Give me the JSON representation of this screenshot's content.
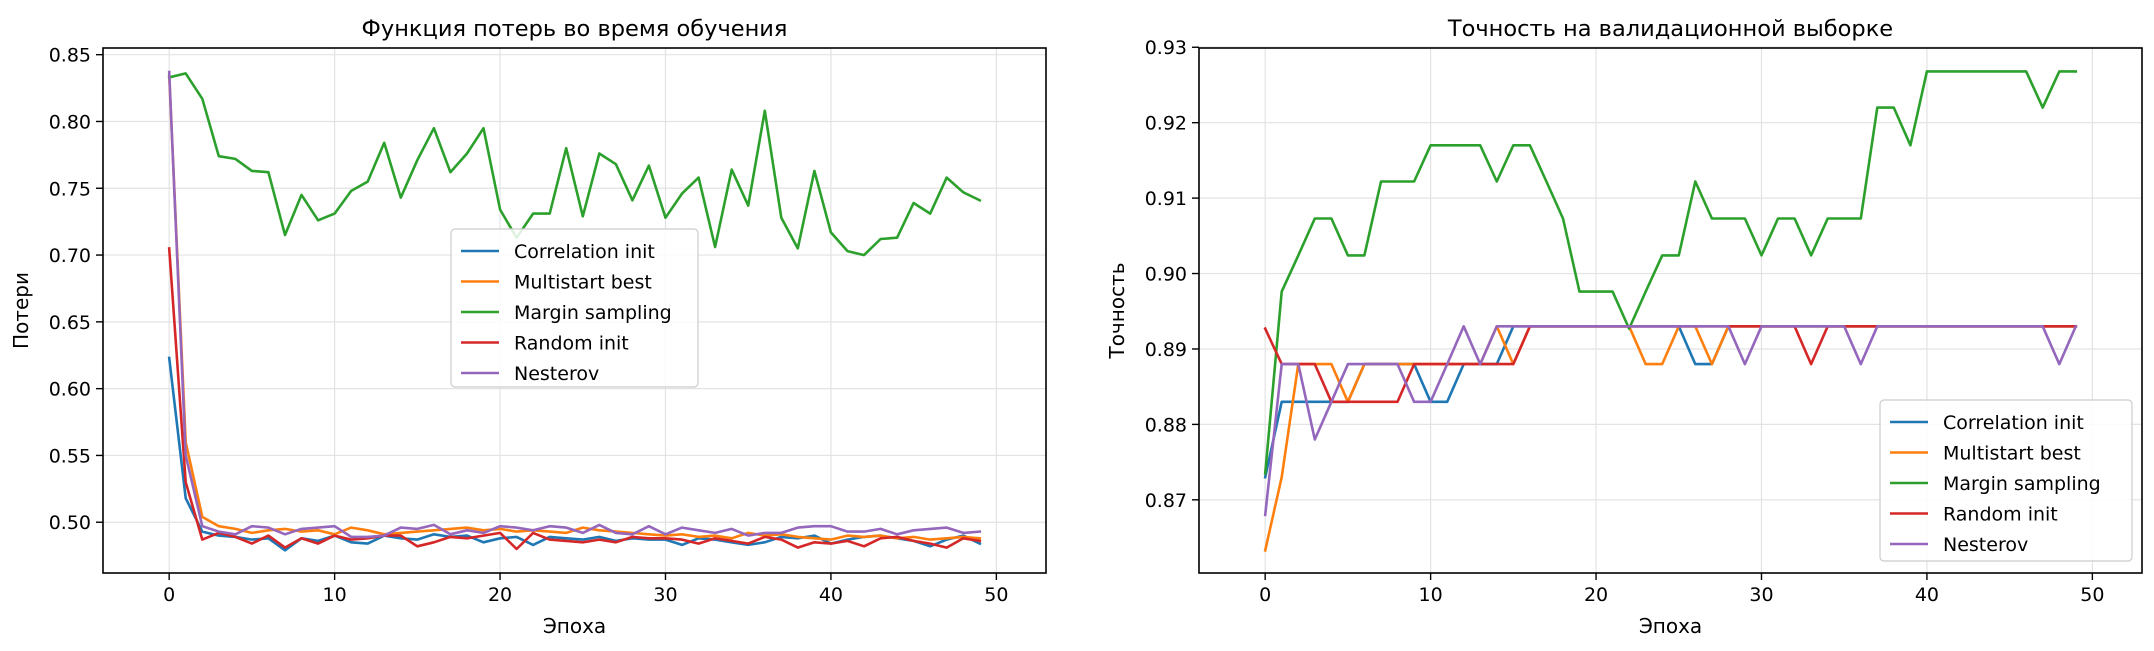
{
  "chart_data": [
    {
      "type": "line",
      "title": "Функция потерь во время обучения",
      "xlabel": "Эпоха",
      "ylabel": "Потери",
      "xlim": [
        -4,
        53
      ],
      "ylim": [
        0.462,
        0.855
      ],
      "xticks": [
        0,
        10,
        20,
        30,
        40,
        50
      ],
      "yticks": [
        0.5,
        0.55,
        0.6,
        0.65,
        0.7,
        0.75,
        0.8,
        0.85
      ],
      "ytick_labels": [
        "0.50",
        "0.55",
        "0.60",
        "0.65",
        "0.70",
        "0.75",
        "0.80",
        "0.85"
      ],
      "grid": true,
      "legend_position": "center-right",
      "x": [
        0,
        1,
        2,
        3,
        4,
        5,
        6,
        7,
        8,
        9,
        10,
        11,
        12,
        13,
        14,
        15,
        16,
        17,
        18,
        19,
        20,
        21,
        22,
        23,
        24,
        25,
        26,
        27,
        28,
        29,
        30,
        31,
        32,
        33,
        34,
        35,
        36,
        37,
        38,
        39,
        40,
        41,
        42,
        43,
        44,
        45,
        46,
        47,
        48,
        49
      ],
      "series": [
        {
          "name": "Correlation init",
          "color": "#1f77b4",
          "values": [
            0.623,
            0.518,
            0.493,
            0.49,
            0.489,
            0.487,
            0.488,
            0.479,
            0.488,
            0.486,
            0.49,
            0.485,
            0.484,
            0.49,
            0.488,
            0.487,
            0.491,
            0.489,
            0.49,
            0.485,
            0.488,
            0.489,
            0.483,
            0.489,
            0.488,
            0.487,
            0.489,
            0.486,
            0.488,
            0.487,
            0.487,
            0.483,
            0.488,
            0.487,
            0.485,
            0.483,
            0.485,
            0.489,
            0.488,
            0.49,
            0.484,
            0.487,
            0.489,
            0.49,
            0.488,
            0.486,
            0.482,
            0.487,
            0.49,
            0.484
          ]
        },
        {
          "name": "Multistart best",
          "color": "#ff7f0e",
          "values": [
            0.835,
            0.56,
            0.504,
            0.497,
            0.495,
            0.492,
            0.494,
            0.495,
            0.493,
            0.494,
            0.491,
            0.496,
            0.494,
            0.491,
            0.492,
            0.493,
            0.494,
            0.495,
            0.496,
            0.494,
            0.495,
            0.493,
            0.494,
            0.493,
            0.492,
            0.496,
            0.494,
            0.493,
            0.492,
            0.491,
            0.49,
            0.491,
            0.489,
            0.49,
            0.488,
            0.492,
            0.49,
            0.491,
            0.489,
            0.488,
            0.487,
            0.49,
            0.489,
            0.49,
            0.488,
            0.489,
            0.487,
            0.488,
            0.489,
            0.488
          ]
        },
        {
          "name": "Margin sampling",
          "color": "#2ca02c",
          "values": [
            0.833,
            0.836,
            0.817,
            0.774,
            0.772,
            0.763,
            0.762,
            0.715,
            0.745,
            0.726,
            0.731,
            0.748,
            0.755,
            0.784,
            0.743,
            0.771,
            0.795,
            0.762,
            0.776,
            0.795,
            0.734,
            0.713,
            0.731,
            0.731,
            0.78,
            0.729,
            0.776,
            0.768,
            0.741,
            0.767,
            0.728,
            0.746,
            0.758,
            0.706,
            0.764,
            0.737,
            0.808,
            0.728,
            0.705,
            0.763,
            0.717,
            0.703,
            0.7,
            0.712,
            0.713,
            0.739,
            0.731,
            0.758,
            0.747,
            0.741
          ]
        },
        {
          "name": "Random init",
          "color": "#d62728",
          "values": [
            0.705,
            0.53,
            0.487,
            0.492,
            0.489,
            0.484,
            0.49,
            0.481,
            0.488,
            0.484,
            0.49,
            0.487,
            0.488,
            0.49,
            0.49,
            0.482,
            0.485,
            0.489,
            0.488,
            0.49,
            0.492,
            0.48,
            0.492,
            0.487,
            0.486,
            0.485,
            0.487,
            0.485,
            0.489,
            0.488,
            0.488,
            0.487,
            0.484,
            0.488,
            0.486,
            0.484,
            0.489,
            0.487,
            0.481,
            0.485,
            0.484,
            0.486,
            0.482,
            0.488,
            0.489,
            0.486,
            0.484,
            0.481,
            0.488,
            0.486
          ]
        },
        {
          "name": "Nesterov",
          "color": "#9467bd",
          "values": [
            0.837,
            0.55,
            0.497,
            0.493,
            0.491,
            0.497,
            0.496,
            0.491,
            0.495,
            0.496,
            0.497,
            0.489,
            0.489,
            0.49,
            0.496,
            0.495,
            0.498,
            0.491,
            0.494,
            0.492,
            0.497,
            0.496,
            0.494,
            0.497,
            0.496,
            0.492,
            0.498,
            0.492,
            0.491,
            0.497,
            0.491,
            0.496,
            0.494,
            0.492,
            0.495,
            0.49,
            0.492,
            0.492,
            0.496,
            0.497,
            0.497,
            0.493,
            0.493,
            0.495,
            0.491,
            0.494,
            0.495,
            0.496,
            0.492,
            0.493
          ]
        }
      ]
    },
    {
      "type": "line",
      "title": "Точность на валидационной выборке",
      "xlabel": "Эпоха",
      "ylabel": "Точность",
      "xlim": [
        -4,
        53
      ],
      "ylim": [
        0.8603,
        0.9299
      ],
      "xticks": [
        0,
        10,
        20,
        30,
        40,
        50
      ],
      "yticks": [
        0.87,
        0.88,
        0.89,
        0.9,
        0.91,
        0.92,
        0.93
      ],
      "ytick_labels": [
        "0.87",
        "0.88",
        "0.89",
        "0.90",
        "0.91",
        "0.92",
        "0.93"
      ],
      "grid": true,
      "legend_position": "lower-right",
      "x": [
        0,
        1,
        2,
        3,
        4,
        5,
        6,
        7,
        8,
        9,
        10,
        11,
        12,
        13,
        14,
        15,
        16,
        17,
        18,
        19,
        20,
        21,
        22,
        23,
        24,
        25,
        26,
        27,
        28,
        29,
        30,
        31,
        32,
        33,
        34,
        35,
        36,
        37,
        38,
        39,
        40,
        41,
        42,
        43,
        44,
        45,
        46,
        47,
        48,
        49
      ],
      "series": [
        {
          "name": "Correlation init",
          "color": "#1f77b4",
          "values": [
            0.873,
            0.883,
            0.883,
            0.883,
            0.883,
            0.883,
            0.888,
            0.888,
            0.888,
            0.888,
            0.883,
            0.883,
            0.888,
            0.888,
            0.888,
            0.893,
            0.893,
            0.893,
            0.893,
            0.893,
            0.893,
            0.893,
            0.893,
            0.893,
            0.893,
            0.893,
            0.888,
            0.888,
            0.893,
            0.893,
            0.893,
            0.893,
            0.893,
            0.893,
            0.893,
            0.893,
            0.893,
            0.893,
            0.893,
            0.893,
            0.893,
            0.893,
            0.893,
            0.893,
            0.893,
            0.893,
            0.893,
            0.893,
            0.893,
            0.893
          ]
        },
        {
          "name": "Multistart best",
          "color": "#ff7f0e",
          "values": [
            0.8633,
            0.873,
            0.888,
            0.888,
            0.888,
            0.883,
            0.888,
            0.888,
            0.888,
            0.888,
            0.888,
            0.888,
            0.888,
            0.888,
            0.893,
            0.888,
            0.893,
            0.893,
            0.893,
            0.893,
            0.893,
            0.893,
            0.893,
            0.888,
            0.888,
            0.893,
            0.893,
            0.888,
            0.893,
            0.893,
            0.893,
            0.893,
            0.893,
            0.893,
            0.893,
            0.893,
            0.893,
            0.893,
            0.893,
            0.893,
            0.893,
            0.893,
            0.893,
            0.893,
            0.893,
            0.893,
            0.893,
            0.893,
            0.893,
            0.893
          ]
        },
        {
          "name": "Margin sampling",
          "color": "#2ca02c",
          "values": [
            0.8735,
            0.8976,
            0.9024,
            0.9073,
            0.9073,
            0.9024,
            0.9024,
            0.9122,
            0.9122,
            0.9122,
            0.917,
            0.917,
            0.917,
            0.917,
            0.9122,
            0.917,
            0.917,
            0.9122,
            0.9073,
            0.8976,
            0.8976,
            0.8976,
            0.8927,
            0.8976,
            0.9024,
            0.9024,
            0.9122,
            0.9073,
            0.9073,
            0.9073,
            0.9024,
            0.9073,
            0.9073,
            0.9024,
            0.9073,
            0.9073,
            0.9073,
            0.922,
            0.922,
            0.917,
            0.9268,
            0.9268,
            0.9268,
            0.9268,
            0.9268,
            0.9268,
            0.9268,
            0.922,
            0.9268,
            0.9268
          ]
        },
        {
          "name": "Random init",
          "color": "#d62728",
          "values": [
            0.8927,
            0.888,
            0.888,
            0.888,
            0.883,
            0.883,
            0.883,
            0.883,
            0.883,
            0.888,
            0.888,
            0.888,
            0.888,
            0.888,
            0.888,
            0.888,
            0.893,
            0.893,
            0.893,
            0.893,
            0.893,
            0.893,
            0.893,
            0.893,
            0.893,
            0.893,
            0.893,
            0.893,
            0.893,
            0.893,
            0.893,
            0.893,
            0.893,
            0.888,
            0.893,
            0.893,
            0.893,
            0.893,
            0.893,
            0.893,
            0.893,
            0.893,
            0.893,
            0.893,
            0.893,
            0.893,
            0.893,
            0.893,
            0.893,
            0.893
          ]
        },
        {
          "name": "Nesterov",
          "color": "#9467bd",
          "values": [
            0.868,
            0.888,
            0.888,
            0.878,
            0.883,
            0.888,
            0.888,
            0.888,
            0.888,
            0.883,
            0.883,
            0.888,
            0.893,
            0.888,
            0.893,
            0.893,
            0.893,
            0.893,
            0.893,
            0.893,
            0.893,
            0.893,
            0.893,
            0.893,
            0.893,
            0.893,
            0.893,
            0.893,
            0.893,
            0.888,
            0.893,
            0.893,
            0.893,
            0.893,
            0.893,
            0.893,
            0.888,
            0.893,
            0.893,
            0.893,
            0.893,
            0.893,
            0.893,
            0.893,
            0.893,
            0.893,
            0.893,
            0.893,
            0.888,
            0.893
          ]
        }
      ]
    }
  ]
}
